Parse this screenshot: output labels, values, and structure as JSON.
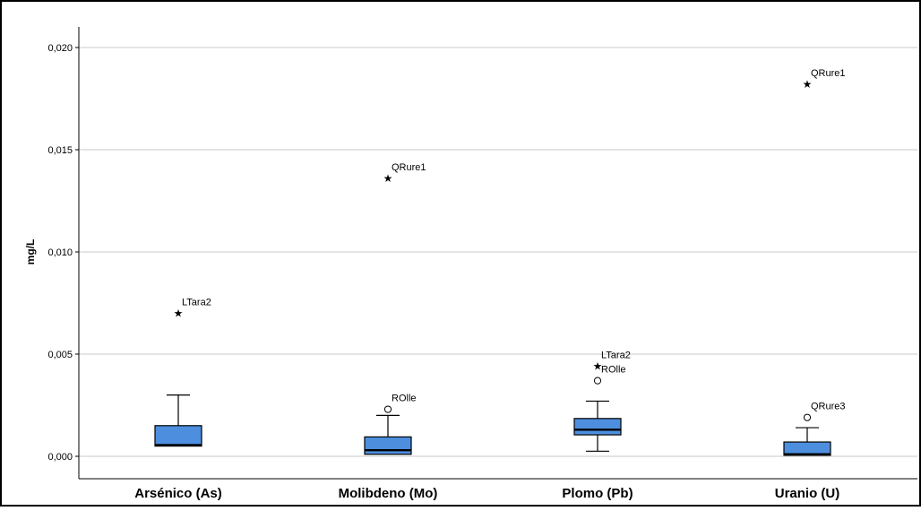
{
  "chart_data": {
    "type": "boxplot",
    "title": "",
    "xlabel": "",
    "ylabel": "mg/L",
    "ylim": [
      -0.0013,
      0.0213
    ],
    "yticks": [
      0.0,
      0.005,
      0.01,
      0.015,
      0.02
    ],
    "ytick_labels": [
      "0,000",
      "0,005",
      "0,010",
      "0,015",
      "0,020"
    ],
    "grid": "horizontal",
    "box_color": "#4d8fde",
    "categories": [
      "Arsénico (As)",
      "Molibdeno (Mo)",
      "Plomo (Pb)",
      "Uranio (U)"
    ],
    "boxes": [
      {
        "category": "Arsénico (As)",
        "whisker_low": 0.0005,
        "q1": 0.0005,
        "median": 0.00055,
        "q3": 0.0015,
        "whisker_high": 0.003,
        "outliers": [
          {
            "value": 0.007,
            "marker": "star",
            "label": "LTara2"
          }
        ]
      },
      {
        "category": "Molibdeno (Mo)",
        "whisker_low": 0.0001,
        "q1": 0.0001,
        "median": 0.0003,
        "q3": 0.00095,
        "whisker_high": 0.002,
        "outliers": [
          {
            "value": 0.0023,
            "marker": "circle",
            "label": "ROlle"
          },
          {
            "value": 0.0136,
            "marker": "star",
            "label": "QRure1"
          }
        ]
      },
      {
        "category": "Plomo (Pb)",
        "whisker_low": 0.00025,
        "q1": 0.00105,
        "median": 0.0013,
        "q3": 0.00185,
        "whisker_high": 0.0027,
        "outliers": [
          {
            "value": 0.0037,
            "marker": "circle",
            "label": "ROlle"
          },
          {
            "value": 0.0044,
            "marker": "star",
            "label": "LTara2"
          }
        ]
      },
      {
        "category": "Uranio (U)",
        "whisker_low": 5e-05,
        "q1": 5e-05,
        "median": 0.0001,
        "q3": 0.0007,
        "whisker_high": 0.0014,
        "outliers": [
          {
            "value": 0.0019,
            "marker": "circle",
            "label": "QRure3"
          },
          {
            "value": 0.0182,
            "marker": "star",
            "label": "QRure1"
          }
        ]
      }
    ]
  }
}
